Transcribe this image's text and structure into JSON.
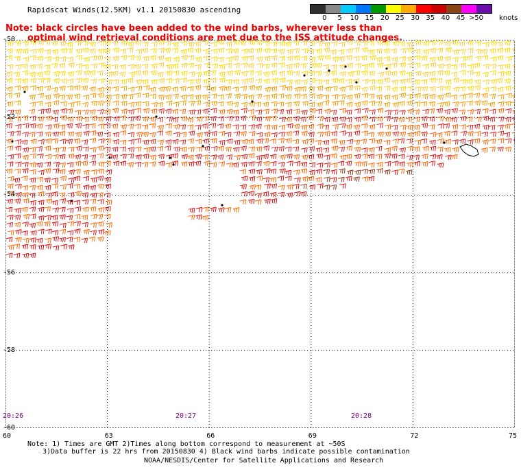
{
  "title": "Rapidscat Winds(12.5KM) v1.1 20150830 ascending",
  "note": {
    "line1": "Note: black circles have been added to the wind barbs, wherever less than",
    "line2": "optimal wind retrieval conditions are met due to the ISS attitude changes."
  },
  "legend": {
    "unit_label": "knots",
    "labels": [
      "0",
      "5",
      "10",
      "15",
      "20",
      "25",
      "30",
      "35",
      "40",
      "45",
      ">50"
    ],
    "colors": [
      "#303030",
      "#888888",
      "#00ccff",
      "#0077ff",
      "#009900",
      "#ffff00",
      "#ffaa00",
      "#ff0000",
      "#cc0000",
      "#8b4513",
      "#ff00ff",
      "#6a0dad"
    ]
  },
  "map": {
    "lat_labels": [
      "-50",
      "-52",
      "-54",
      "-56",
      "-58",
      "-60"
    ],
    "lon_labels": [
      "60",
      "63",
      "66",
      "69",
      "72",
      "75"
    ],
    "time_labels": [
      "20:26",
      "20:27",
      "20:28"
    ]
  },
  "footnotes": {
    "line1": "Note: 1) Times are GMT 2)Times along bottom correspond to measurement at ~50S",
    "line2": "3)Data buffer is 22 hrs from 20150830 4) Black wind barbs indicate possible contamination"
  },
  "credit": "NOAA/NESDIS/Center for Satellite Applications and Research"
}
